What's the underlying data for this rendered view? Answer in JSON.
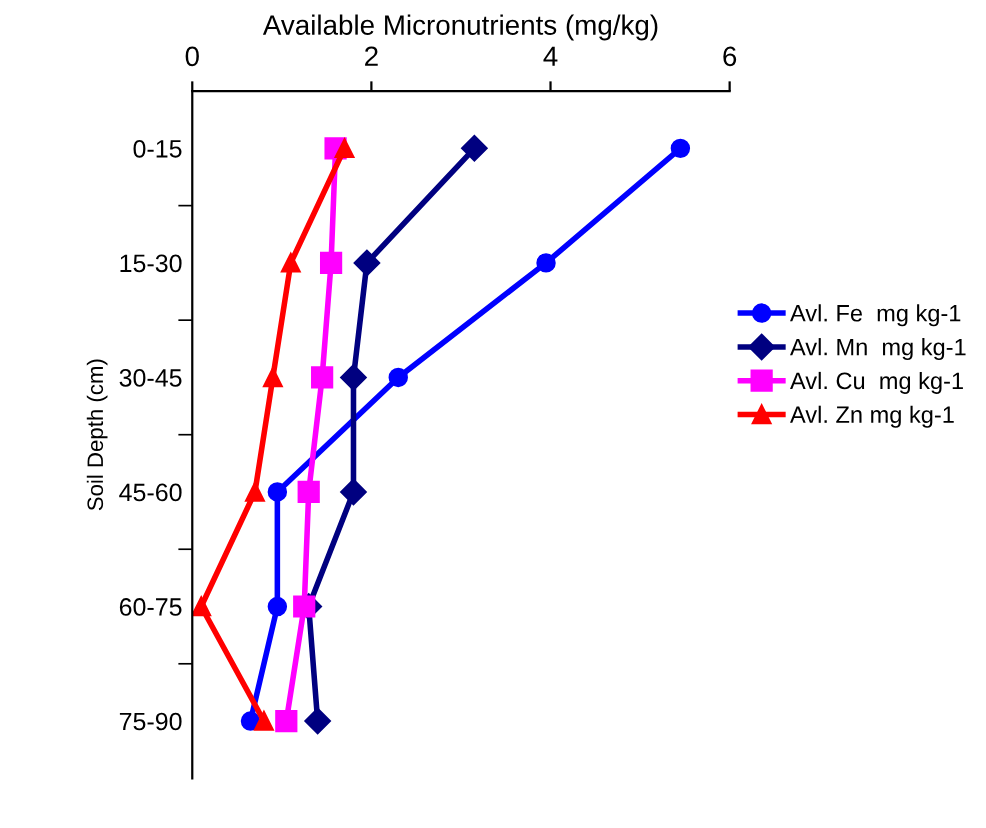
{
  "chart_data": {
    "type": "line",
    "orientation": "horizontal",
    "xlabel": "Available Micronutrients (mg/kg)",
    "ylabel": "Soil Depth (cm)",
    "categories": [
      "0-15",
      "15-30",
      "30-45",
      "45-60",
      "60-75",
      "75-90"
    ],
    "xlim": [
      0,
      6
    ],
    "xticks": [
      0,
      2,
      4,
      6
    ],
    "grid": false,
    "legend": "right",
    "line_style": "solid",
    "series": [
      {
        "name": "Avl. Fe  mg kg-1",
        "color": "#0000ff",
        "marker": "circle",
        "values": [
          5.45,
          3.95,
          2.3,
          0.95,
          0.95,
          0.65
        ]
      },
      {
        "name": "Avl. Mn  mg kg-1",
        "color": "#000080",
        "marker": "diamond",
        "values": [
          3.15,
          1.95,
          1.8,
          1.8,
          1.3,
          1.4
        ]
      },
      {
        "name": "Avl. Cu  mg kg-1",
        "color": "#ff00ff",
        "marker": "square",
        "values": [
          1.6,
          1.55,
          1.45,
          1.3,
          1.25,
          1.05
        ]
      },
      {
        "name": "Avl. Zn mg kg-1",
        "color": "#ff0000",
        "marker": "triangle",
        "values": [
          1.7,
          1.1,
          0.9,
          0.7,
          0.1,
          0.8
        ]
      }
    ]
  }
}
